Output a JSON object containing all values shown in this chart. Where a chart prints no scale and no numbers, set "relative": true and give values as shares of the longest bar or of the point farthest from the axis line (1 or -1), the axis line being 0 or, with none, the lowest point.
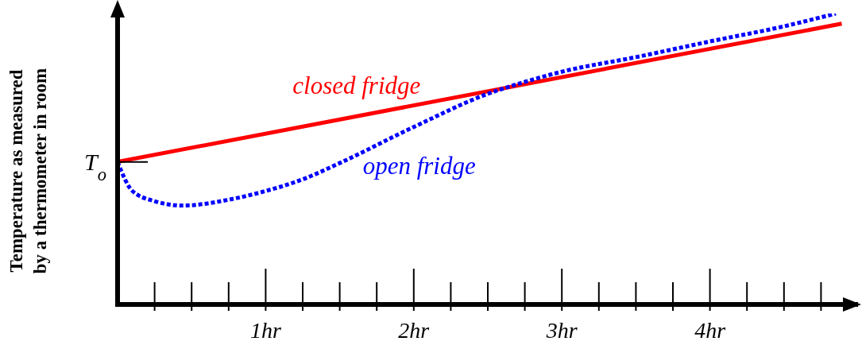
{
  "chart_data": {
    "type": "line",
    "relative": true,
    "ylabel": "Temperature as measured\nby a thermometer in room",
    "xlim": [
      0,
      5
    ],
    "xticks": [
      {
        "value": 0.25,
        "label": null
      },
      {
        "value": 0.5,
        "label": null
      },
      {
        "value": 0.75,
        "label": null
      },
      {
        "value": 1,
        "label": "1hr"
      },
      {
        "value": 1.25,
        "label": null
      },
      {
        "value": 1.5,
        "label": null
      },
      {
        "value": 1.75,
        "label": null
      },
      {
        "value": 2,
        "label": "2hr"
      },
      {
        "value": 2.25,
        "label": null
      },
      {
        "value": 2.5,
        "label": null
      },
      {
        "value": 2.75,
        "label": null
      },
      {
        "value": 3,
        "label": "3hr"
      },
      {
        "value": 3.25,
        "label": null
      },
      {
        "value": 3.5,
        "label": null
      },
      {
        "value": 3.75,
        "label": null
      },
      {
        "value": 4,
        "label": "4hr"
      },
      {
        "value": 4.25,
        "label": null
      },
      {
        "value": 4.5,
        "label": null
      },
      {
        "value": 4.75,
        "label": null
      }
    ],
    "grid": false,
    "legend": false,
    "marker": "none",
    "annotations": [
      {
        "text": "T$_{o}$",
        "x": 0,
        "y": 0.49
      }
    ],
    "series": [
      {
        "name": "closed fridge",
        "color": "#ff0000",
        "line_style": "solid",
        "x": [
          0,
          4.89
        ],
        "values": [
          0.49,
          0.965
        ]
      },
      {
        "name": "open fridge",
        "color": "#0000ff",
        "line_style": "dotted",
        "x": [
          0,
          0.1,
          0.25,
          0.44,
          0.75,
          1,
          1.25,
          1.5,
          2,
          2.5,
          2.75,
          3,
          3.5,
          4,
          4.5,
          4.85
        ],
        "values": [
          0.49,
          0.39,
          0.355,
          0.34,
          0.36,
          0.39,
          0.43,
          0.486,
          0.61,
          0.724,
          0.765,
          0.8,
          0.85,
          0.904,
          0.956,
          1
        ]
      }
    ]
  }
}
